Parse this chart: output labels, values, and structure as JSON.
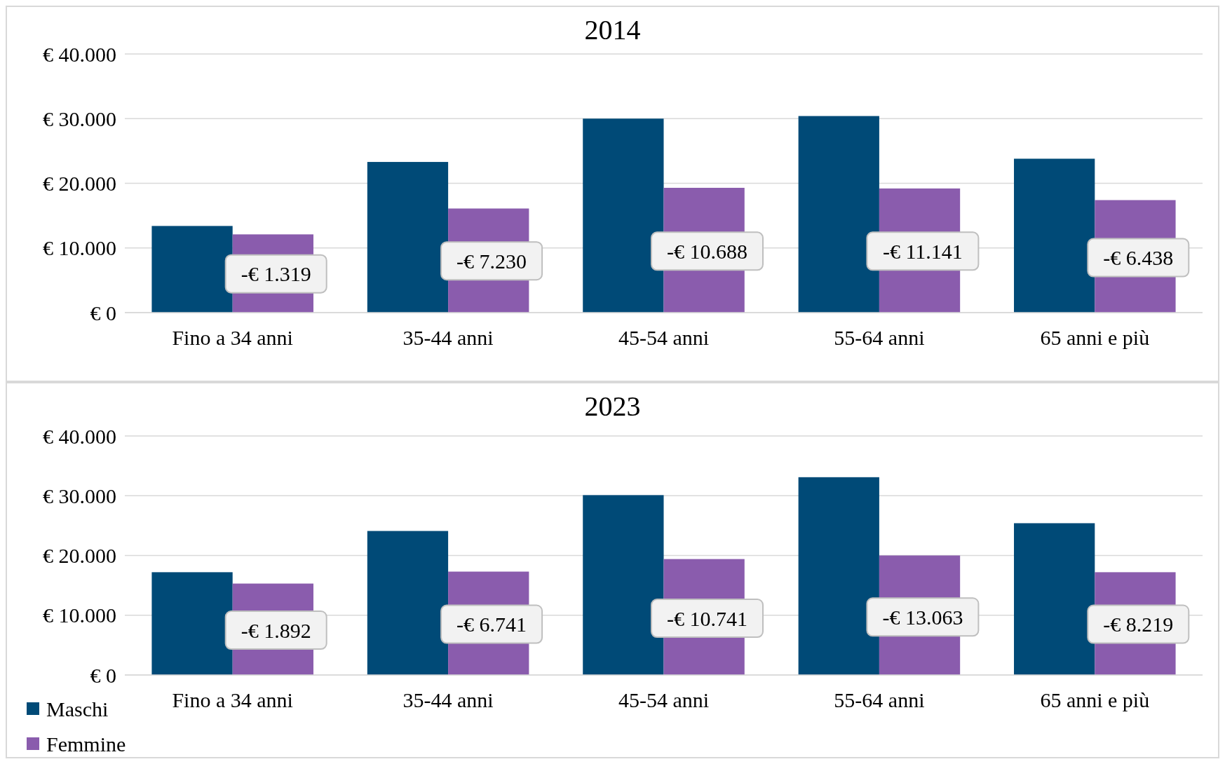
{
  "chart_data": [
    {
      "type": "bar",
      "title": "2014",
      "categories": [
        "Fino a 34 anni",
        "35-44 anni",
        "45-54 anni",
        "55-64 anni",
        "65 anni e più"
      ],
      "series": [
        {
          "color": "#004a77",
          "values": [
            13400,
            23300,
            30000,
            30400,
            23800
          ]
        },
        {
          "color": "#8a5cad",
          "values": [
            12100,
            16100,
            19300,
            19200,
            17400
          ]
        }
      ],
      "ylim": [
        0,
        40000
      ],
      "yticks": [
        {
          "value": 0,
          "label": "€ 0"
        },
        {
          "value": 10000,
          "label": "€ 10.000"
        },
        {
          "value": 20000,
          "label": "€ 20.000"
        },
        {
          "value": 30000,
          "label": "€ 30.000"
        },
        {
          "value": 40000,
          "label": "€ 40.000"
        }
      ],
      "grid": "y",
      "legend": false,
      "annotations": [
        {
          "text": "-€ 1.319",
          "x": "Fino a 34 anni",
          "y": 6000
        },
        {
          "text": "-€ 7.230",
          "x": "35-44 anni",
          "y": 8000
        },
        {
          "text": "-€ 10.688",
          "x": "45-54 anni",
          "y": 9500
        },
        {
          "text": "-€ 11.141",
          "x": "55-64 anni",
          "y": 9500
        },
        {
          "text": "-€ 6.438",
          "x": "65 anni e più",
          "y": 8500
        }
      ]
    },
    {
      "type": "bar",
      "title": "2023",
      "categories": [
        "Fino a 34 anni",
        "35-44 anni",
        "45-54 anni",
        "55-64 anni",
        "65 anni e più"
      ],
      "series": [
        {
          "name": "Maschi",
          "color": "#004a77",
          "values": [
            17200,
            24100,
            30100,
            33100,
            25400
          ]
        },
        {
          "name": "Femmine",
          "color": "#8a5cad",
          "values": [
            15300,
            17300,
            19400,
            20000,
            17200
          ]
        }
      ],
      "ylim": [
        0,
        40000
      ],
      "yticks": [
        {
          "value": 0,
          "label": "€ 0"
        },
        {
          "value": 10000,
          "label": "€ 10.000"
        },
        {
          "value": 20000,
          "label": "€ 20.000"
        },
        {
          "value": 30000,
          "label": "€ 30.000"
        },
        {
          "value": 40000,
          "label": "€ 40.000"
        }
      ],
      "grid": "y",
      "legend": "bottom left",
      "annotations": [
        {
          "text": "-€ 1.892",
          "x": "Fino a 34 anni",
          "y": 7500
        },
        {
          "text": "-€ 6.741",
          "x": "35-44 anni",
          "y": 8500
        },
        {
          "text": "-€ 10.741",
          "x": "45-54 anni",
          "y": 9500
        },
        {
          "text": "-€ 13.063",
          "x": "55-64 anni",
          "y": 9700
        },
        {
          "text": "-€ 8.219",
          "x": "65 anni e più",
          "y": 8500
        }
      ]
    }
  ]
}
